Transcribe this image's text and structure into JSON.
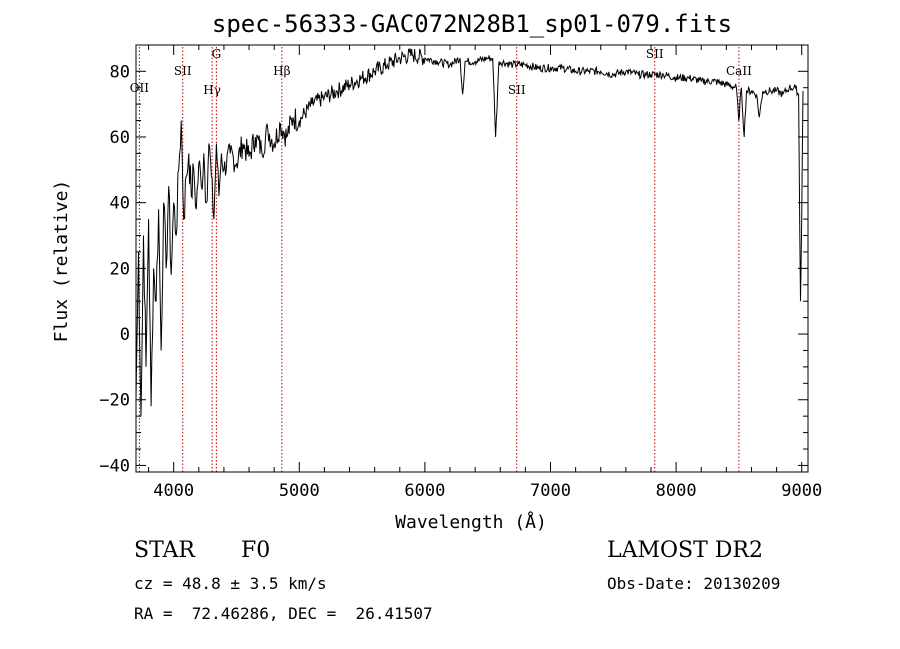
{
  "chart_data": {
    "type": "line",
    "title": "spec-56333-GAC072N28B1_sp01-079.fits",
    "xlabel": "Wavelength (Å)",
    "ylabel": "Flux (relative)",
    "xlim": [
      3700,
      9050
    ],
    "ylim": [
      -42,
      88
    ],
    "x_ticks": [
      4000,
      5000,
      6000,
      7000,
      8000,
      9000
    ],
    "y_ticks": [
      -40,
      -20,
      0,
      20,
      40,
      60,
      80
    ],
    "series": [
      {
        "name": "flux",
        "x": [
          3700,
          3720,
          3740,
          3760,
          3780,
          3800,
          3820,
          3840,
          3860,
          3880,
          3900,
          3920,
          3940,
          3960,
          3980,
          4000,
          4020,
          4040,
          4060,
          4080,
          4100,
          4120,
          4140,
          4160,
          4180,
          4200,
          4220,
          4240,
          4260,
          4280,
          4300,
          4320,
          4340,
          4360,
          4380,
          4400,
          4450,
          4500,
          4550,
          4600,
          4650,
          4700,
          4750,
          4800,
          4850,
          4900,
          4950,
          5000,
          5100,
          5200,
          5300,
          5400,
          5500,
          5600,
          5700,
          5800,
          5900,
          6000,
          6100,
          6200,
          6280,
          6300,
          6320,
          6400,
          6500,
          6540,
          6563,
          6590,
          6700,
          6800,
          6900,
          7000,
          7100,
          7200,
          7300,
          7400,
          7500,
          7600,
          7700,
          7800,
          7900,
          8000,
          8100,
          8200,
          8300,
          8400,
          8480,
          8498,
          8520,
          8542,
          8560,
          8600,
          8640,
          8662,
          8690,
          8750,
          8800,
          8850,
          8900,
          8950,
          8975,
          8990,
          9000,
          9010
        ],
        "values": [
          -20,
          25,
          -25,
          30,
          -10,
          35,
          -22,
          20,
          10,
          38,
          -5,
          40,
          20,
          45,
          18,
          40,
          30,
          50,
          65,
          35,
          48,
          55,
          42,
          50,
          38,
          52,
          45,
          55,
          40,
          58,
          48,
          35,
          58,
          42,
          55,
          50,
          55,
          52,
          58,
          54,
          60,
          56,
          62,
          58,
          64,
          60,
          66,
          65,
          70,
          72,
          74,
          76,
          78,
          80,
          82,
          84,
          85,
          84,
          83,
          82,
          84,
          73,
          83,
          83,
          84,
          84,
          60,
          83,
          82,
          82,
          81,
          81,
          81,
          80,
          80,
          80,
          79,
          80,
          79,
          79,
          79,
          78,
          78,
          77,
          77,
          76,
          75,
          65,
          75,
          60,
          74,
          74,
          73,
          66,
          74,
          74,
          74,
          73,
          75,
          75,
          73,
          10,
          35,
          74
        ]
      }
    ],
    "markers": [
      {
        "label": "OII",
        "x": 3727
      },
      {
        "label": "SII",
        "x": 4072
      },
      {
        "label": "Hγ",
        "x": 4306
      },
      {
        "label": "G",
        "x": 4340
      },
      {
        "label": "Hβ",
        "x": 4861
      },
      {
        "label": "SII",
        "x": 6731
      },
      {
        "label": "SII",
        "x": 7830
      },
      {
        "label": "CaII",
        "x": 8500
      }
    ]
  },
  "info": {
    "class_type": "STAR",
    "subclass": "F0",
    "survey": "LAMOST DR2",
    "cz": "cz = 48.8 ± 3.5 km/s",
    "obs_date": "Obs-Date: 20130209",
    "coords": "RA =  72.46286, DEC =  26.41507"
  }
}
